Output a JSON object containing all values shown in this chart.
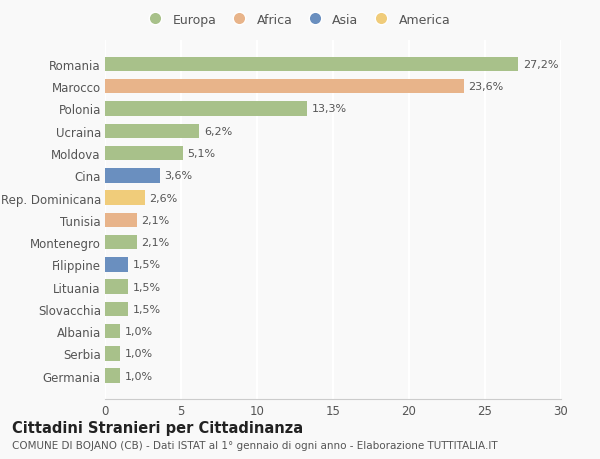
{
  "countries": [
    "Romania",
    "Marocco",
    "Polonia",
    "Ucraina",
    "Moldova",
    "Cina",
    "Rep. Dominicana",
    "Tunisia",
    "Montenegro",
    "Filippine",
    "Lituania",
    "Slovacchia",
    "Albania",
    "Serbia",
    "Germania"
  ],
  "values": [
    27.2,
    23.6,
    13.3,
    6.2,
    5.1,
    3.6,
    2.6,
    2.1,
    2.1,
    1.5,
    1.5,
    1.5,
    1.0,
    1.0,
    1.0
  ],
  "labels": [
    "27,2%",
    "23,6%",
    "13,3%",
    "6,2%",
    "5,1%",
    "3,6%",
    "2,6%",
    "2,1%",
    "2,1%",
    "1,5%",
    "1,5%",
    "1,5%",
    "1,0%",
    "1,0%",
    "1,0%"
  ],
  "continents": [
    "Europa",
    "Africa",
    "Europa",
    "Europa",
    "Europa",
    "Asia",
    "America",
    "Africa",
    "Europa",
    "Asia",
    "Europa",
    "Europa",
    "Europa",
    "Europa",
    "Europa"
  ],
  "colors": {
    "Europa": "#a8c18a",
    "Africa": "#e8b48a",
    "Asia": "#6a8fbf",
    "America": "#f0cc7a"
  },
  "legend_order": [
    "Europa",
    "Africa",
    "Asia",
    "America"
  ],
  "xlim": [
    0,
    30
  ],
  "xticks": [
    0,
    5,
    10,
    15,
    20,
    25,
    30
  ],
  "title": "Cittadini Stranieri per Cittadinanza",
  "subtitle": "COMUNE DI BOJANO (CB) - Dati ISTAT al 1° gennaio di ogni anno - Elaborazione TUTTITALIA.IT",
  "bg_color": "#f9f9f9",
  "grid_color": "#ffffff",
  "bar_height": 0.65,
  "label_fontsize": 8,
  "ytick_fontsize": 8.5,
  "xtick_fontsize": 8.5,
  "title_fontsize": 10.5,
  "subtitle_fontsize": 7.5,
  "legend_fontsize": 9
}
